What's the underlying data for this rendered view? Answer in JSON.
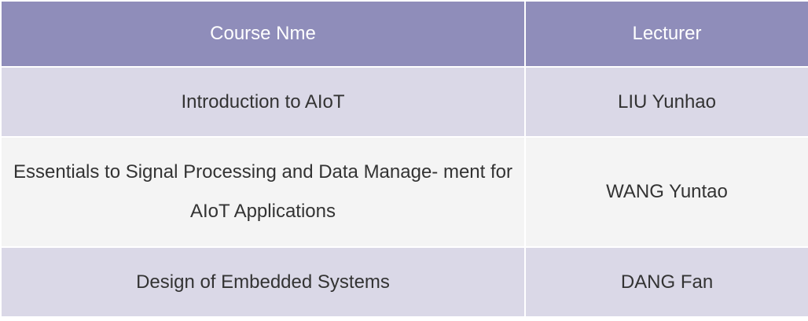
{
  "table": {
    "headers": [
      "Course Nme",
      "Lecturer"
    ],
    "rows": [
      {
        "course": "Introduction to AIoT",
        "lecturer": "LIU Yunhao"
      },
      {
        "course": "Essentials to Signal Processing and Data Manage- ment for AIoT Applications",
        "lecturer": "WANG Yuntao"
      },
      {
        "course": "Design of Embedded Systems",
        "lecturer": "DANG Fan"
      }
    ]
  },
  "colors": {
    "header": "#8f8dba",
    "row_odd": "#dad8e7",
    "row_even": "#f4f4f4"
  }
}
